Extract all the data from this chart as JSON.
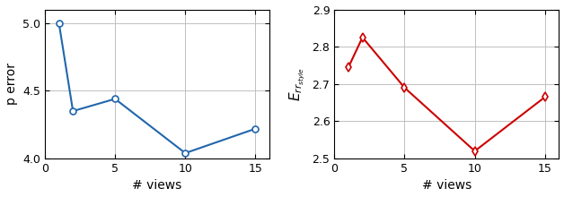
{
  "left_x": [
    1,
    2,
    5,
    10,
    15
  ],
  "left_y": [
    5.0,
    4.35,
    4.44,
    4.04,
    4.22
  ],
  "left_ylabel": "p error",
  "left_xlabel": "# views",
  "left_color": "#2166ac",
  "left_ylim": [
    4.0,
    5.1
  ],
  "left_yticks": [
    4.0,
    4.5,
    5.0
  ],
  "left_xticks": [
    0,
    5,
    10,
    15
  ],
  "left_xlim": [
    0,
    16
  ],
  "right_x": [
    1,
    2,
    5,
    10,
    15
  ],
  "right_y": [
    2.745,
    2.825,
    2.69,
    2.52,
    2.665
  ],
  "right_ylabel": "$E_{rr_{style}}$",
  "right_xlabel": "# views",
  "right_color": "#cc0000",
  "right_ylim": [
    2.5,
    2.9
  ],
  "right_yticks": [
    2.5,
    2.6,
    2.7,
    2.8,
    2.9
  ],
  "right_xticks": [
    0,
    5,
    10,
    15
  ],
  "right_xlim": [
    0,
    16
  ],
  "marker_left": "o",
  "marker_right": "d",
  "linewidth": 1.5,
  "markersize": 5,
  "tick_fontsize": 9,
  "label_fontsize": 10
}
